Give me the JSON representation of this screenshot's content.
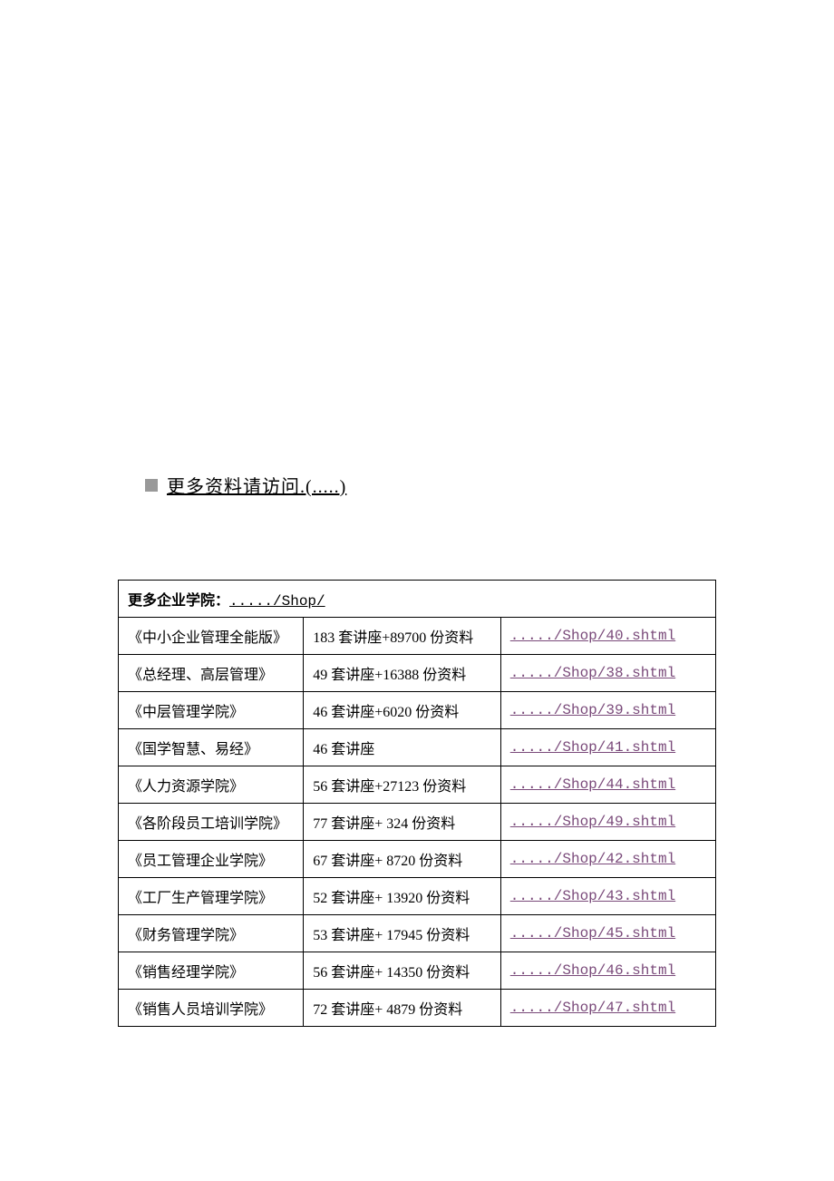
{
  "header": {
    "text": "更多资料请访问.(.....)"
  },
  "table": {
    "header_label": "更多企业学院：",
    "header_link": "...../Shop/",
    "rows": [
      {
        "name": "《中小企业管理全能版》",
        "desc": "183 套讲座+89700 份资料",
        "link": "...../Shop/40.shtml"
      },
      {
        "name": "《总经理、高层管理》",
        "desc": "49 套讲座+16388 份资料",
        "link": "...../Shop/38.shtml"
      },
      {
        "name": "《中层管理学院》",
        "desc": "46 套讲座+6020 份资料",
        "link": "...../Shop/39.shtml"
      },
      {
        "name": "《国学智慧、易经》",
        "desc": "46 套讲座",
        "link": "...../Shop/41.shtml"
      },
      {
        "name": "《人力资源学院》",
        "desc": "56 套讲座+27123 份资料",
        "link": "...../Shop/44.shtml"
      },
      {
        "name": "《各阶段员工培训学院》",
        "desc": "77 套讲座+ 324 份资料",
        "link": "...../Shop/49.shtml"
      },
      {
        "name": "《员工管理企业学院》",
        "desc": "67 套讲座+ 8720 份资料",
        "link": "...../Shop/42.shtml"
      },
      {
        "name": "《工厂生产管理学院》",
        "desc": "52 套讲座+ 13920 份资料",
        "link": "...../Shop/43.shtml"
      },
      {
        "name": "《财务管理学院》",
        "desc": "53 套讲座+ 17945 份资料",
        "link": "...../Shop/45.shtml"
      },
      {
        "name": "《销售经理学院》",
        "desc": "56 套讲座+ 14350 份资料",
        "link": "...../Shop/46.shtml"
      },
      {
        "name": "《销售人员培训学院》",
        "desc": "72 套讲座+ 4879 份资料",
        "link": "...../Shop/47.shtml"
      }
    ]
  }
}
